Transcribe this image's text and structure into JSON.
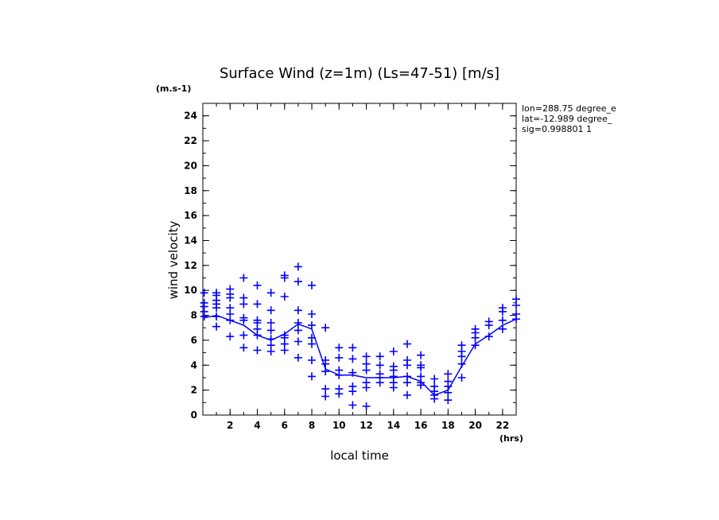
{
  "chart_data": {
    "type": "scatter",
    "title": "Surface Wind (z=1m) (Ls=47-51) [m/s]",
    "ylabel": "wind velocity",
    "yunits": "(m.s-1)",
    "xlabel": "local time",
    "xunits": "(hrs)",
    "xlim": [
      0,
      23
    ],
    "ylim": [
      0,
      25
    ],
    "x_ticks": [
      2,
      4,
      6,
      8,
      10,
      12,
      14,
      16,
      18,
      20,
      22
    ],
    "y_ticks": [
      0,
      2,
      4,
      6,
      8,
      10,
      12,
      14,
      16,
      18,
      20,
      22,
      24
    ],
    "grid": false,
    "info_lines": [
      "lon=288.75 degree_e",
      "lat=-12.989 degree_",
      "sig=0.998801 1"
    ],
    "color": "#0000ff",
    "mean_line": {
      "x": [
        0.1,
        1,
        2,
        3,
        4,
        5,
        6,
        7,
        8,
        9,
        10,
        11,
        12,
        13,
        14,
        15,
        16,
        17,
        18,
        19,
        20,
        21,
        22,
        23
      ],
      "y": [
        7.8,
        8.0,
        7.6,
        7.2,
        6.4,
        6.0,
        6.5,
        7.3,
        6.9,
        3.7,
        3.2,
        3.2,
        3.0,
        3.0,
        3.0,
        3.1,
        2.7,
        1.6,
        2.0,
        3.9,
        5.7,
        6.4,
        7.2,
        7.7
      ]
    },
    "points": {
      "x": [
        0.1,
        0.1,
        0.1,
        0.1,
        0.1,
        1,
        1,
        1,
        1,
        1,
        1,
        1,
        2,
        2,
        2,
        2,
        2,
        2,
        2,
        3,
        3,
        3,
        3,
        3,
        3,
        3,
        4,
        4,
        4,
        4,
        4,
        4,
        4,
        5,
        5,
        5,
        5,
        5,
        5,
        5,
        6,
        6,
        6,
        6,
        6,
        6,
        6,
        7,
        7,
        7,
        7,
        7,
        7,
        7,
        8,
        8,
        8,
        8,
        8,
        8,
        8,
        9,
        9,
        9,
        9,
        9,
        9,
        10,
        10,
        10,
        10,
        10,
        10,
        11,
        11,
        11,
        11,
        11,
        11,
        12,
        12,
        12,
        12,
        12,
        12,
        13,
        13,
        13,
        13,
        13,
        14,
        14,
        14,
        14,
        14,
        14,
        15,
        15,
        15,
        15,
        15,
        15,
        16,
        16,
        16,
        16,
        16,
        16,
        17,
        17,
        17,
        17,
        17,
        18,
        18,
        18,
        18,
        18,
        19,
        19,
        19,
        19,
        19,
        20,
        20,
        20,
        20,
        21,
        21,
        21,
        22,
        22,
        22,
        22,
        23,
        23,
        23,
        23
      ],
      "y": [
        7.9,
        8.3,
        8.7,
        9.0,
        9.8,
        7.1,
        7.9,
        8.6,
        8.9,
        9.2,
        9.6,
        9.8,
        6.3,
        7.6,
        8.1,
        8.6,
        9.4,
        9.7,
        10.1,
        5.4,
        6.4,
        7.6,
        7.8,
        8.9,
        9.4,
        11.0,
        5.2,
        6.4,
        6.9,
        7.4,
        7.6,
        8.9,
        10.4,
        5.1,
        5.6,
        6.1,
        6.8,
        7.4,
        8.4,
        9.8,
        5.2,
        5.7,
        6.2,
        6.4,
        9.5,
        11.0,
        11.2,
        4.6,
        5.9,
        6.8,
        7.4,
        8.4,
        10.7,
        11.9,
        3.1,
        4.4,
        5.7,
        6.2,
        7.2,
        8.1,
        10.4,
        1.5,
        2.1,
        3.5,
        4.1,
        4.4,
        7.0,
        1.7,
        2.1,
        3.2,
        3.6,
        4.6,
        5.4,
        0.8,
        1.9,
        2.3,
        3.4,
        4.5,
        5.4,
        0.7,
        2.2,
        2.6,
        3.6,
        4.1,
        4.7,
        2.6,
        3.0,
        3.3,
        4.0,
        4.7,
        2.2,
        2.6,
        3.1,
        3.6,
        3.9,
        5.1,
        1.6,
        2.6,
        3.1,
        4.0,
        4.4,
        5.7,
        2.4,
        2.6,
        3.1,
        3.8,
        4.0,
        4.8,
        1.3,
        1.6,
        1.9,
        2.3,
        2.9,
        1.2,
        1.8,
        2.3,
        2.7,
        3.3,
        3.0,
        4.1,
        4.7,
        5.1,
        5.6,
        5.6,
        6.2,
        6.6,
        6.9,
        6.3,
        7.2,
        7.5,
        6.9,
        7.6,
        8.3,
        8.6,
        7.7,
        8.1,
        8.8,
        9.3
      ]
    }
  }
}
